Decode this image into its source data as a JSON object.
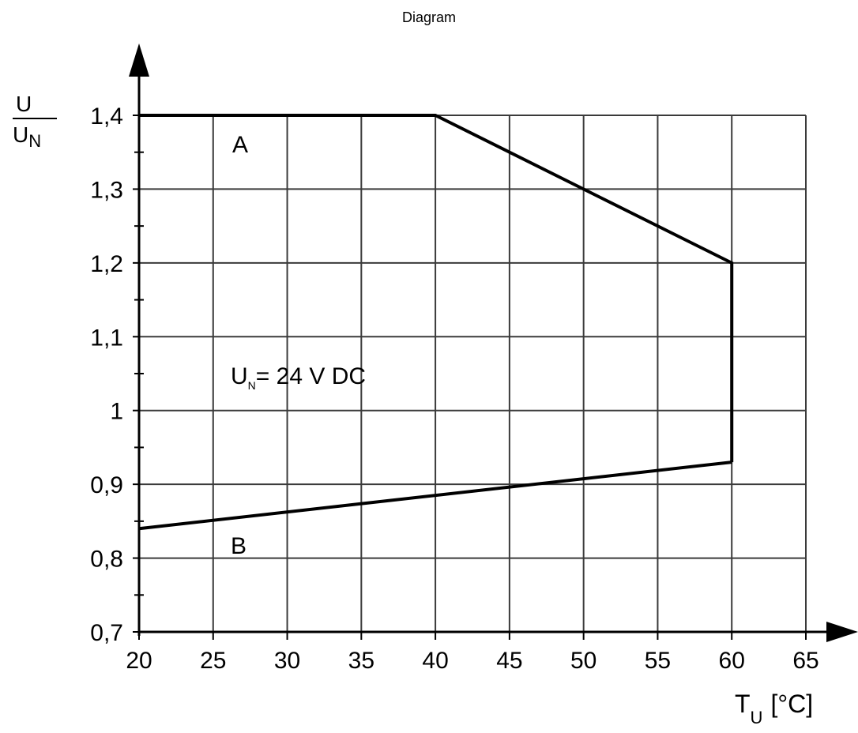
{
  "title": "Diagram",
  "chart_data": {
    "type": "line",
    "xlabel": {
      "main": "T",
      "sub": "U",
      "unit": "[°C]"
    },
    "ylabel": {
      "numerator": "U",
      "denominator_main": "U",
      "denominator_sub": "N"
    },
    "x_ticks": [
      "20",
      "25",
      "30",
      "35",
      "40",
      "45",
      "50",
      "55",
      "60",
      "65"
    ],
    "y_ticks": [
      "0,7",
      "0,8",
      "0,9",
      "1",
      "1,1",
      "1,2",
      "1,3",
      "1,4"
    ],
    "xlim": [
      20,
      65
    ],
    "ylim": [
      0.7,
      1.4
    ],
    "grid": true,
    "series": [
      {
        "name": "A",
        "x": [
          20,
          40,
          60,
          60
        ],
        "y": [
          1.4,
          1.4,
          1.2,
          0.93
        ]
      },
      {
        "name": "B",
        "x": [
          20,
          60
        ],
        "y": [
          0.84,
          0.93
        ]
      }
    ],
    "annotation": {
      "main": "U",
      "sub": "N",
      "rest": "= 24 V DC"
    },
    "colors": {
      "line": "#000000",
      "grid": "#3a3a3a",
      "background": "#ffffff"
    }
  }
}
